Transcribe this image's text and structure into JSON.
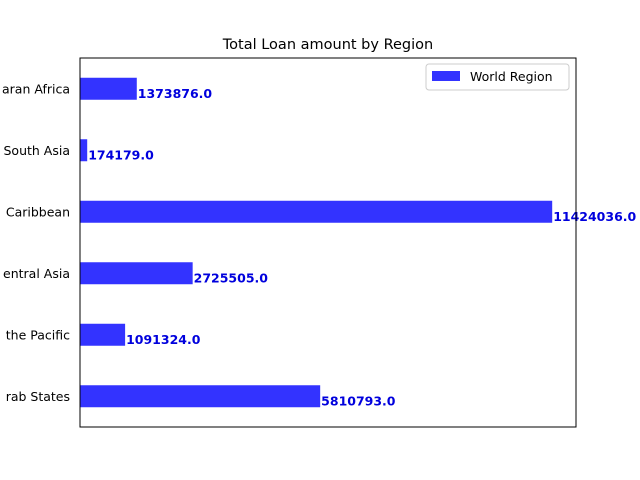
{
  "chart_data": {
    "type": "bar",
    "orientation": "horizontal",
    "title": "Total Loan amount by Region",
    "xlabel": "",
    "ylabel": "",
    "categories": [
      "Arab States",
      "Asia and the Pacific",
      "Europe and Central Asia",
      "Latin America and Caribbean",
      "South Asia",
      "Sub-Saharan Africa"
    ],
    "category_labels_visible": [
      "rab States",
      "the Pacific",
      "entral Asia",
      "Caribbean",
      "South Asia",
      "aran Africa"
    ],
    "series": [
      {
        "name": "World Region",
        "values": [
          5810793.0,
          1091324.0,
          2725505.0,
          11424036.0,
          174179.0,
          1373876.0
        ],
        "color": "#3333ff"
      }
    ],
    "value_labels": [
      "5810793.0",
      "1091324.0",
      "2725505.0",
      "11424036.0",
      "174179.0",
      "1373876.0"
    ],
    "value_label_color": "#0000dd",
    "xlim": [
      0,
      12000000
    ],
    "x_ticks_visible": false,
    "grid": false,
    "legend_position": "top-right"
  }
}
